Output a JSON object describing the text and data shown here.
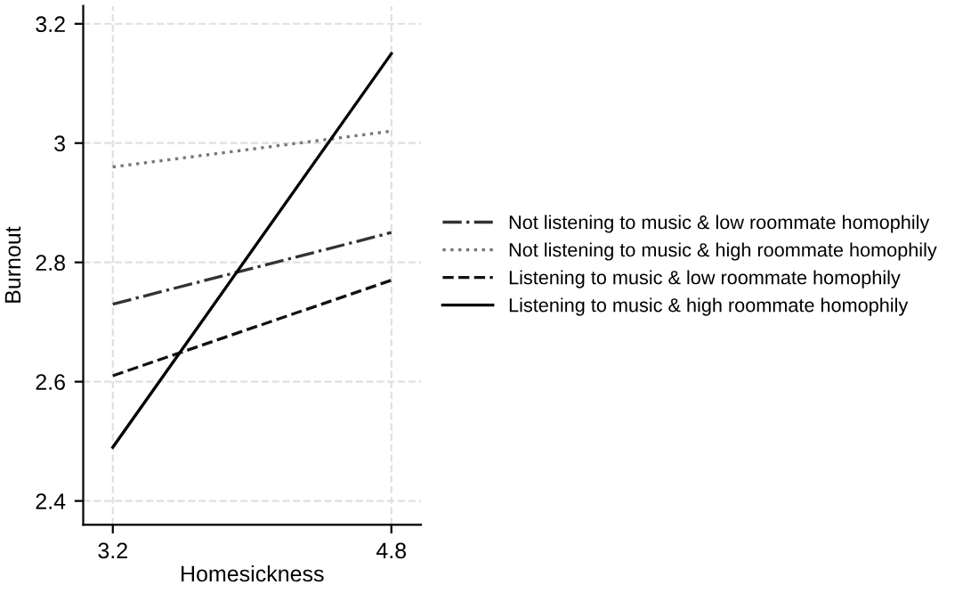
{
  "chart_data": {
    "type": "line",
    "xlabel": "Homesickness",
    "ylabel": "Burnout",
    "x": [
      3.2,
      4.8
    ],
    "series": [
      {
        "name": "Not listening to music & low roommate homophily",
        "color": "#333333",
        "line_style": "dashdot",
        "values": [
          2.73,
          2.85
        ]
      },
      {
        "name": "Not listening to music & high roommate homophily",
        "color": "#777777",
        "line_style": "dotted",
        "values": [
          2.96,
          3.02
        ]
      },
      {
        "name": "Listening to music & low roommate homophily",
        "color": "#111111",
        "line_style": "dashed",
        "values": [
          2.61,
          2.77
        ]
      },
      {
        "name": "Listening to music & high roommate homophily",
        "color": "#000000",
        "line_style": "solid",
        "values": [
          2.49,
          3.15
        ]
      }
    ],
    "xlim": [
      3.03,
      4.97
    ],
    "xticks": [
      3.2,
      4.8
    ],
    "ylim": [
      2.36,
      3.23
    ],
    "yticks": [
      2.4,
      2.6,
      2.8,
      3,
      3.2
    ],
    "grid": true,
    "legend": "right",
    "marker": "none"
  }
}
